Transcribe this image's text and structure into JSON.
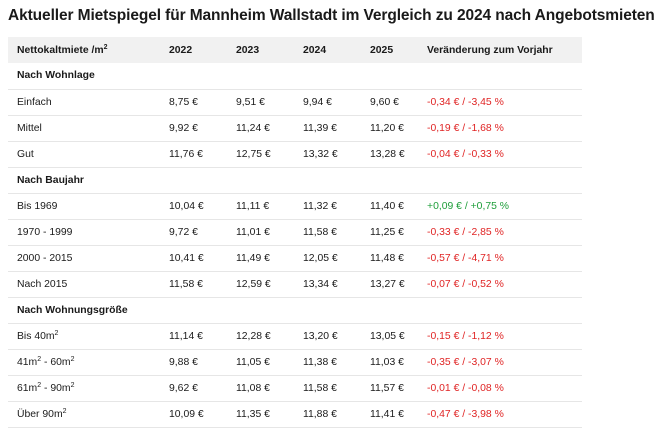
{
  "title": "Aktueller Mietspiegel für Mannheim Wallstadt im Vergleich zu 2024 nach Angebotsmieten",
  "header": {
    "label": "Nettokaltmiete /m",
    "label_sup": "2",
    "years": [
      "2022",
      "2023",
      "2024",
      "2025"
    ],
    "change": "Veränderung zum Vorjahr"
  },
  "groups": [
    {
      "name": "Nach Wohnlage",
      "rows": [
        {
          "label": "Einfach",
          "sup": "",
          "label_suffix": "",
          "sup2": "",
          "values": [
            "8,75 €",
            "9,51 €",
            "9,94 €",
            "9,60 €"
          ],
          "change": "-0,34 € / -3,45 %",
          "trend": "neg"
        },
        {
          "label": "Mittel",
          "sup": "",
          "label_suffix": "",
          "sup2": "",
          "values": [
            "9,92 €",
            "11,24 €",
            "11,39 €",
            "11,20 €"
          ],
          "change": "-0,19 € / -1,68 %",
          "trend": "neg"
        },
        {
          "label": "Gut",
          "sup": "",
          "label_suffix": "",
          "sup2": "",
          "values": [
            "11,76 €",
            "12,75 €",
            "13,32 €",
            "13,28 €"
          ],
          "change": "-0,04 € / -0,33 %",
          "trend": "neg"
        }
      ]
    },
    {
      "name": "Nach Baujahr",
      "rows": [
        {
          "label": "Bis 1969",
          "sup": "",
          "label_suffix": "",
          "sup2": "",
          "values": [
            "10,04 €",
            "11,11 €",
            "11,32 €",
            "11,40 €"
          ],
          "change": "+0,09 € / +0,75 %",
          "trend": "pos"
        },
        {
          "label": "1970 - 1999",
          "sup": "",
          "label_suffix": "",
          "sup2": "",
          "values": [
            "9,72 €",
            "11,01 €",
            "11,58 €",
            "11,25 €"
          ],
          "change": "-0,33 € / -2,85 %",
          "trend": "neg"
        },
        {
          "label": "2000 - 2015",
          "sup": "",
          "label_suffix": "",
          "sup2": "",
          "values": [
            "10,41 €",
            "11,49 €",
            "12,05 €",
            "11,48 €"
          ],
          "change": "-0,57 € / -4,71 %",
          "trend": "neg"
        },
        {
          "label": "Nach 2015",
          "sup": "",
          "label_suffix": "",
          "sup2": "",
          "values": [
            "11,58 €",
            "12,59 €",
            "13,34 €",
            "13,27 €"
          ],
          "change": "-0,07 € / -0,52 %",
          "trend": "neg"
        }
      ]
    },
    {
      "name": "Nach Wohnungsgröße",
      "rows": [
        {
          "label": "Bis 40m",
          "sup": "2",
          "label_suffix": "",
          "sup2": "",
          "values": [
            "11,14 €",
            "12,28 €",
            "13,20 €",
            "13,05 €"
          ],
          "change": "-0,15 € / -1,12 %",
          "trend": "neg"
        },
        {
          "label": "41m",
          "sup": "2",
          "label_suffix": " - 60m",
          "sup2": "2",
          "values": [
            "9,88 €",
            "11,05 €",
            "11,38 €",
            "11,03 €"
          ],
          "change": "-0,35 € / -3,07 %",
          "trend": "neg"
        },
        {
          "label": "61m",
          "sup": "2",
          "label_suffix": " - 90m",
          "sup2": "2",
          "values": [
            "9,62 €",
            "11,08 €",
            "11,58 €",
            "11,57 €"
          ],
          "change": "-0,01 € / -0,08 %",
          "trend": "neg"
        },
        {
          "label": "Über 90m",
          "sup": "2",
          "label_suffix": "",
          "sup2": "",
          "values": [
            "10,09 €",
            "11,35 €",
            "11,88 €",
            "11,41 €"
          ],
          "change": "-0,47 € / -3,98 %",
          "trend": "neg"
        }
      ]
    }
  ],
  "colors": {
    "negative": "#e02424",
    "positive": "#1e9e3a",
    "header_bg": "#f1f1f1"
  }
}
